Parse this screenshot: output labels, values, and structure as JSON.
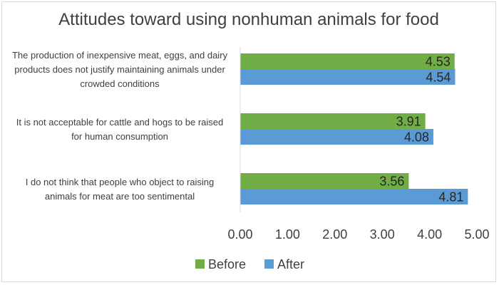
{
  "chart_data": {
    "type": "bar",
    "orientation": "horizontal",
    "title": "Attitudes toward using nonhuman animals for food",
    "categories": [
      [
        "The production of inexpensive meat, eggs, and dairy",
        "products does not justify maintaining animals under",
        "crowded conditions"
      ],
      [
        "It is not acceptable for cattle and hogs to be raised",
        "for human consumption"
      ],
      [
        "I do not think that people who object to raising",
        "animals for meat are too sentimental"
      ]
    ],
    "series": [
      {
        "name": "Before",
        "values": [
          4.53,
          3.91,
          3.56
        ],
        "color": "#70ad47"
      },
      {
        "name": "After",
        "values": [
          4.54,
          4.08,
          4.81
        ],
        "color": "#5b9bd5"
      }
    ],
    "value_labels": [
      [
        "4.53",
        "3.91",
        "3.56"
      ],
      [
        "4.54",
        "4.08",
        "4.81"
      ]
    ],
    "xlim": [
      0,
      5
    ],
    "x_ticks": [
      "0.00",
      "1.00",
      "2.00",
      "3.00",
      "4.00",
      "5.00"
    ],
    "grid": false,
    "legend_position": "bottom"
  }
}
